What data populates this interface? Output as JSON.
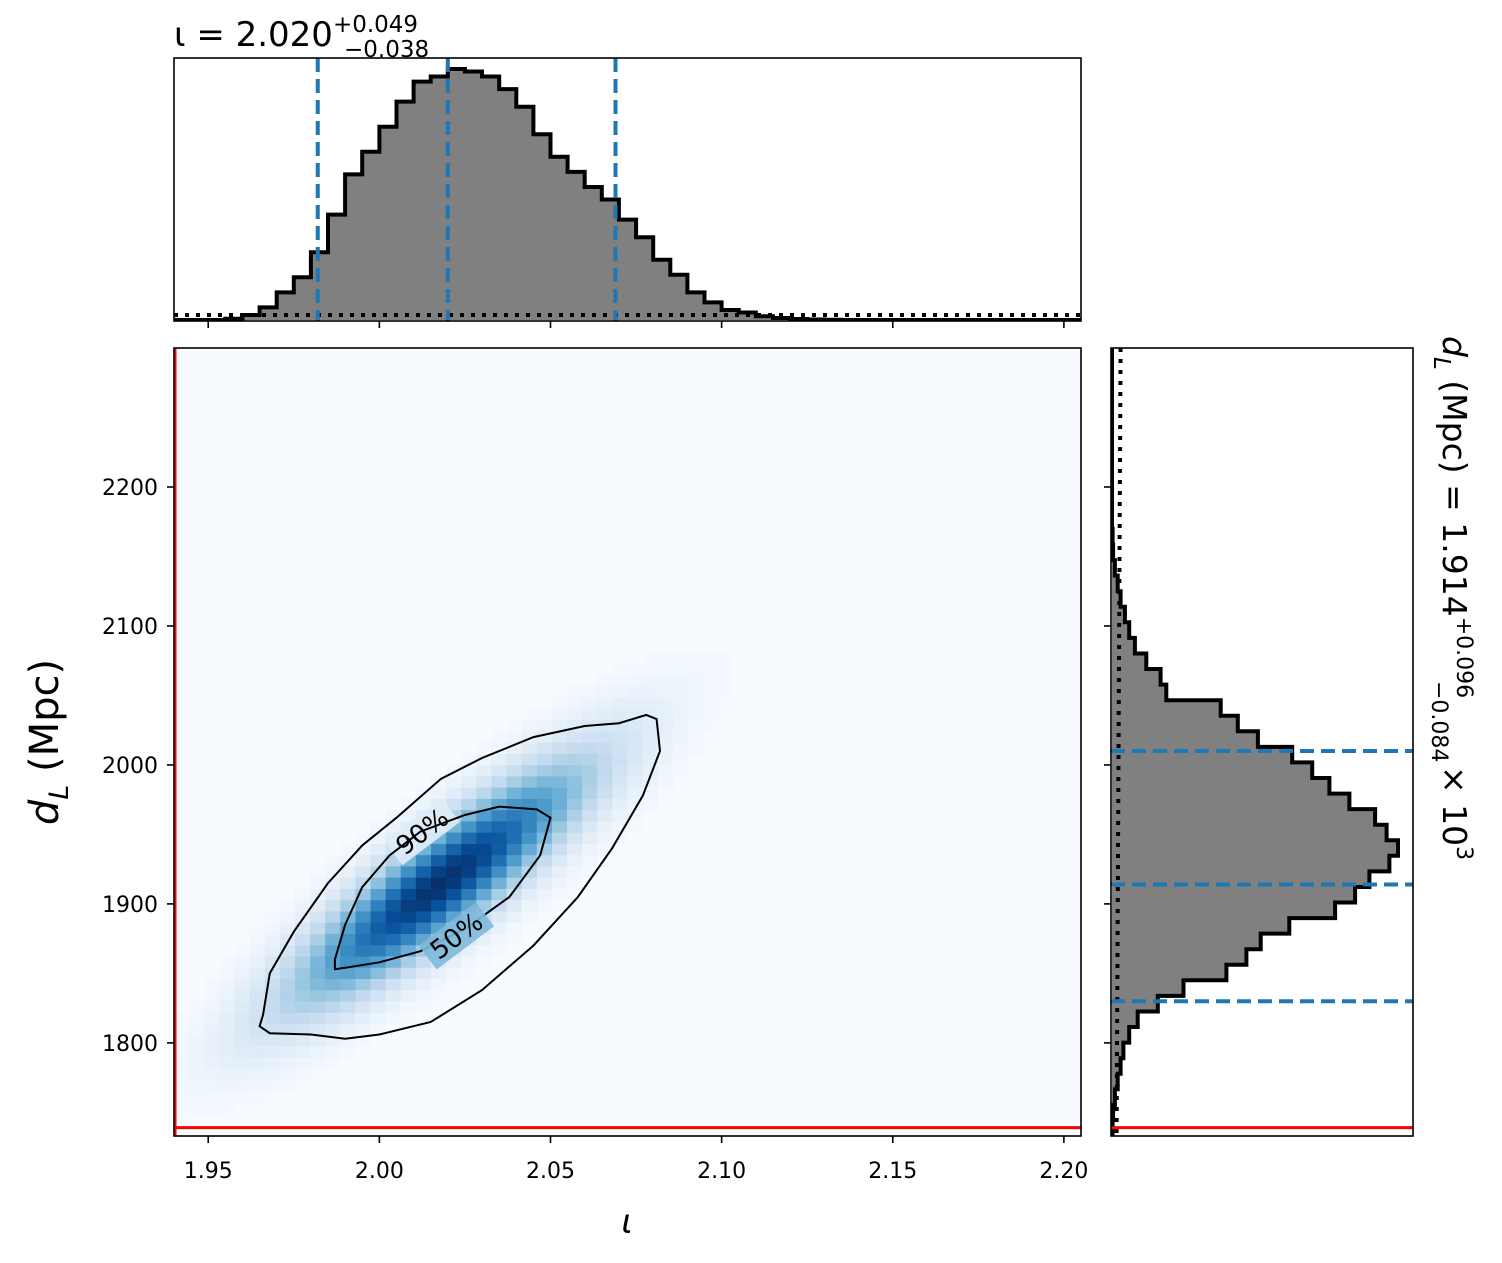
{
  "chart_data": {
    "type": "heatmap",
    "colors": {
      "hist_fill": "#808080",
      "hist_edge": "#000000",
      "quantile_line": "#1f77b4",
      "truth_line": "#ff0000",
      "prior_line": "#000000",
      "contour": "#000000",
      "cmap_low": "#f7fbff",
      "cmap_high": "#08306b"
    },
    "main": {
      "xlabel_symbol": "ι",
      "ylabel_symbol": "d",
      "ylabel_sub": "L",
      "ylabel_unit": "(Mpc)",
      "xlim": [
        1.94,
        2.205
      ],
      "ylim": [
        1733,
        2300
      ],
      "xticks": [
        {
          "value": 1.95,
          "label": "1.95"
        },
        {
          "value": 2.0,
          "label": "2.00"
        },
        {
          "value": 2.05,
          "label": "2.05"
        },
        {
          "value": 2.1,
          "label": "2.10"
        },
        {
          "value": 2.15,
          "label": "2.15"
        },
        {
          "value": 2.2,
          "label": "2.20"
        }
      ],
      "yticks": [
        {
          "value": 1800,
          "label": "1800"
        },
        {
          "value": 1900,
          "label": "1900"
        },
        {
          "value": 2000,
          "label": "2000"
        },
        {
          "value": 2100,
          "label": "2100"
        },
        {
          "value": 2200,
          "label": "2200"
        }
      ],
      "truth": {
        "x": 1.94,
        "y": 1739
      },
      "density": {
        "mean_x": 2.018,
        "mean_y": 1915,
        "sd_x": 0.028,
        "sd_y": 56,
        "corr": 0.88
      },
      "contours": [
        {
          "label": "90%",
          "label_at": [
            2.0125,
            1952
          ],
          "label_angle": -37,
          "points": [
            [
              1.966,
              1820
            ],
            [
              1.965,
              1812
            ],
            [
              1.968,
              1807
            ],
            [
              1.98,
              1806
            ],
            [
              1.99,
              1803
            ],
            [
              2.0,
              1806
            ],
            [
              2.015,
              1815
            ],
            [
              2.03,
              1838
            ],
            [
              2.045,
              1870
            ],
            [
              2.058,
              1905
            ],
            [
              2.068,
              1940
            ],
            [
              2.077,
              1978
            ],
            [
              2.082,
              2010
            ],
            [
              2.081,
              2033
            ],
            [
              2.078,
              2036
            ],
            [
              2.07,
              2030
            ],
            [
              2.06,
              2028
            ],
            [
              2.045,
              2020
            ],
            [
              2.03,
              2005
            ],
            [
              2.018,
              1990
            ],
            [
              2.005,
              1962
            ],
            [
              1.995,
              1942
            ],
            [
              1.985,
              1915
            ],
            [
              1.975,
              1880
            ],
            [
              1.968,
              1850
            ],
            [
              1.966,
              1820
            ]
          ]
        },
        {
          "label": "50%",
          "label_at": [
            2.0225,
            1877
          ],
          "label_angle": -37,
          "points": [
            [
              1.987,
              1860
            ],
            [
              1.987,
              1853
            ],
            [
              1.99,
              1854
            ],
            [
              2.0,
              1858
            ],
            [
              2.012,
              1866
            ],
            [
              2.025,
              1882
            ],
            [
              2.038,
              1905
            ],
            [
              2.047,
              1935
            ],
            [
              2.05,
              1962
            ],
            [
              2.046,
              1968
            ],
            [
              2.035,
              1970
            ],
            [
              2.025,
              1964
            ],
            [
              2.012,
              1952
            ],
            [
              2.003,
              1935
            ],
            [
              1.995,
              1912
            ],
            [
              1.99,
              1885
            ],
            [
              1.987,
              1860
            ]
          ]
        }
      ]
    },
    "top": {
      "title_prefix": "ι = 2.020",
      "title_sup": "+0.049",
      "title_sub": "−0.038",
      "bin_edges_start": 1.94,
      "bin_width": 0.005,
      "counts": [
        0,
        0,
        0,
        0.005,
        0.02,
        0.05,
        0.11,
        0.17,
        0.27,
        0.42,
        0.58,
        0.67,
        0.77,
        0.87,
        0.95,
        0.97,
        1.0,
        0.99,
        0.97,
        0.92,
        0.85,
        0.74,
        0.65,
        0.59,
        0.53,
        0.48,
        0.4,
        0.33,
        0.24,
        0.18,
        0.11,
        0.07,
        0.04,
        0.03,
        0.015,
        0.008,
        0.004,
        0.002,
        0.001,
        0,
        0,
        0,
        0,
        0,
        0,
        0,
        0,
        0,
        0,
        0,
        0,
        0,
        0
      ],
      "quantiles": [
        1.982,
        2.02,
        2.069
      ],
      "prior_level": 0.02
    },
    "right": {
      "title_prefix": "d",
      "title_sub_L": "L",
      "title_mid": "(Mpc) = 1.914",
      "title_sup": "+0.096",
      "title_sub": "−0.084",
      "title_suffix": "× 10",
      "title_exp": "3",
      "bin_edges_start": 1733,
      "bin_width": 11.2,
      "counts": [
        0.002,
        0.004,
        0.01,
        0.02,
        0.03,
        0.04,
        0.06,
        0.09,
        0.16,
        0.25,
        0.4,
        0.47,
        0.52,
        0.62,
        0.78,
        0.85,
        0.9,
        0.97,
        1.0,
        0.96,
        0.92,
        0.83,
        0.76,
        0.7,
        0.63,
        0.51,
        0.44,
        0.38,
        0.19,
        0.17,
        0.12,
        0.08,
        0.06,
        0.045,
        0.03,
        0.02,
        0.01,
        0.004,
        0.002,
        0,
        0,
        0,
        0,
        0,
        0,
        0,
        0,
        0,
        0,
        0,
        0
      ],
      "quantiles": [
        1830,
        1914,
        2010
      ],
      "prior_level": 0.03
    }
  }
}
